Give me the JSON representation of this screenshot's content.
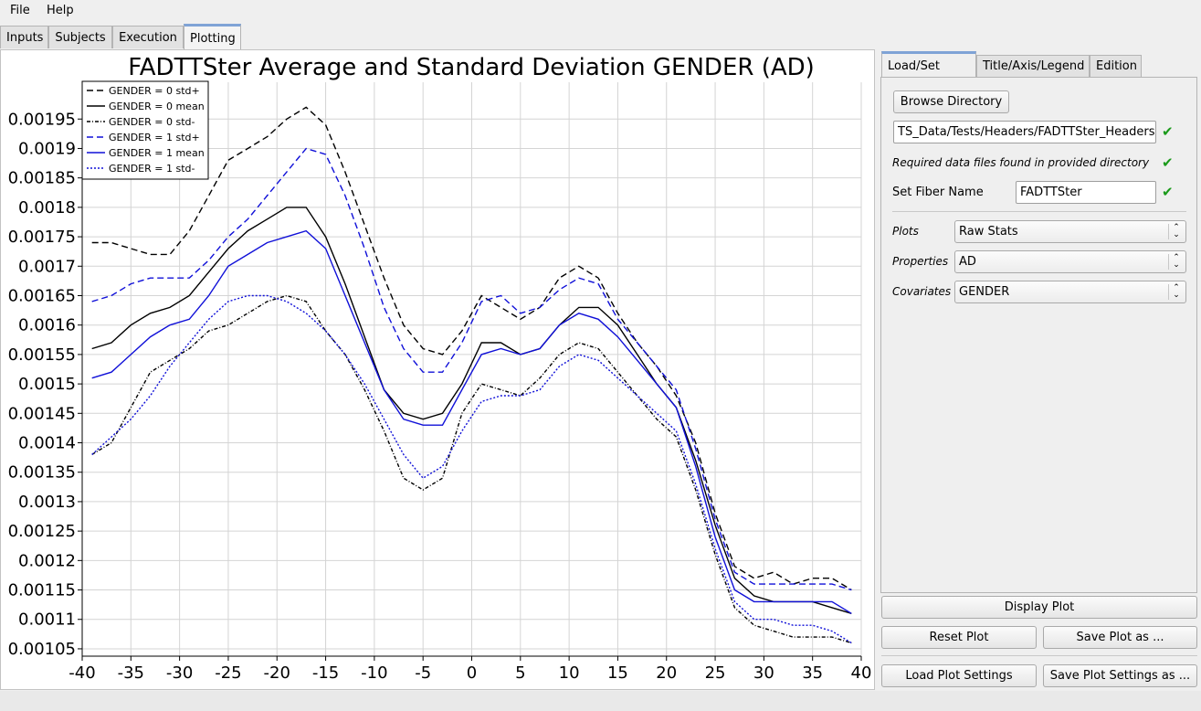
{
  "menu": {
    "file": "File",
    "help": "Help"
  },
  "tabs": [
    "Inputs",
    "Subjects",
    "Execution",
    "Plotting"
  ],
  "right_tabs": [
    "Load/Set Data",
    "Title/Axis/Legend",
    "Edition"
  ],
  "panel": {
    "browse_button": "Browse Directory",
    "directory_value": "TS_Data/Tests/Headers/FADTTSter_Headers",
    "status_text": "Required data files found in provided directory",
    "fiber_label": "Set Fiber Name",
    "fiber_value": "FADTTSter",
    "plots_label": "Plots",
    "plots_value": "Raw Stats",
    "properties_label": "Properties",
    "properties_value": "AD",
    "covariates_label": "Covariates",
    "covariates_value": "GENDER"
  },
  "buttons": {
    "display": "Display Plot",
    "reset": "Reset Plot",
    "save_plot": "Save Plot as ...",
    "load_settings": "Load Plot Settings",
    "save_settings": "Save Plot Settings as ..."
  },
  "colors": {
    "black": "#000000",
    "blue": "#1010d8",
    "check": "#1a9a1a",
    "accent": "#7fa3d6"
  },
  "chart_data": {
    "type": "line",
    "title": "FADTTSter Average and Standard Deviation GENDER (AD)",
    "xlabel": "",
    "ylabel": "",
    "xlim": [
      -40,
      40
    ],
    "ylim": [
      0.0010375,
      0.0020125
    ],
    "xticks": [
      -40,
      -35,
      -30,
      -25,
      -20,
      -15,
      -10,
      -5,
      0,
      5,
      10,
      15,
      20,
      25,
      30,
      35,
      40
    ],
    "xtick_labels": [
      "-40",
      "-35",
      "-30",
      "-25",
      "-20",
      "-15",
      "-10",
      "-5",
      "0",
      "5",
      "10",
      "15",
      "20",
      "25",
      "30",
      "35",
      "40"
    ],
    "yticks": [
      0.00105,
      0.0011,
      0.00115,
      0.0012,
      0.00125,
      0.0013,
      0.00135,
      0.0014,
      0.00145,
      0.0015,
      0.00155,
      0.0016,
      0.00165,
      0.0017,
      0.00175,
      0.0018,
      0.00185,
      0.0019,
      0.00195
    ],
    "ytick_labels": [
      "0.00105",
      "0.0011",
      "0.00115",
      "0.0012",
      "0.00125",
      "0.0013",
      "0.00135",
      "0.0014",
      "0.00145",
      "0.0015",
      "0.00155",
      "0.0016",
      "0.00165",
      "0.0017",
      "0.00175",
      "0.0018",
      "0.00185",
      "0.0019",
      "0.00195"
    ],
    "grid": true,
    "legend_position": "top-left",
    "x": [
      -39,
      -37,
      -35,
      -33,
      -31,
      -29,
      -27,
      -25,
      -23,
      -21,
      -19,
      -17,
      -15,
      -13,
      -11,
      -9,
      -7,
      -5,
      -3,
      -1,
      1,
      3,
      5,
      7,
      9,
      11,
      13,
      15,
      17,
      19,
      21,
      23,
      25,
      27,
      29,
      31,
      33,
      35,
      37,
      39
    ],
    "series": [
      {
        "name": "GENDER = 0 std+",
        "color": "#000000",
        "dash": "dashed",
        "values": [
          0.00174,
          0.00174,
          0.00173,
          0.00172,
          0.00172,
          0.00176,
          0.00182,
          0.00188,
          0.0019,
          0.00192,
          0.00195,
          0.00197,
          0.00194,
          0.00186,
          0.00177,
          0.00168,
          0.0016,
          0.00156,
          0.00155,
          0.00159,
          0.00165,
          0.00163,
          0.00161,
          0.00163,
          0.00168,
          0.0017,
          0.00168,
          0.00162,
          0.00157,
          0.00153,
          0.00148,
          0.0014,
          0.00128,
          0.00119,
          0.00117,
          0.00118,
          0.00116,
          0.00117,
          0.00117,
          0.00115
        ]
      },
      {
        "name": "GENDER = 0 mean",
        "color": "#000000",
        "dash": "solid",
        "values": [
          0.00156,
          0.00157,
          0.0016,
          0.00162,
          0.00163,
          0.00165,
          0.00169,
          0.00173,
          0.00176,
          0.00178,
          0.0018,
          0.0018,
          0.00175,
          0.00167,
          0.00158,
          0.00149,
          0.00145,
          0.00144,
          0.00145,
          0.0015,
          0.00157,
          0.00157,
          0.00155,
          0.00156,
          0.0016,
          0.00163,
          0.00163,
          0.0016,
          0.00155,
          0.0015,
          0.00146,
          0.00137,
          0.00126,
          0.00117,
          0.00114,
          0.00113,
          0.00113,
          0.00113,
          0.00112,
          0.00111
        ]
      },
      {
        "name": "GENDER = 0 std-",
        "color": "#000000",
        "dash": "dashdot",
        "values": [
          0.00138,
          0.0014,
          0.00146,
          0.00152,
          0.00154,
          0.00156,
          0.00159,
          0.0016,
          0.00162,
          0.00164,
          0.00165,
          0.00164,
          0.00159,
          0.00155,
          0.00149,
          0.00142,
          0.00134,
          0.00132,
          0.00134,
          0.00145,
          0.0015,
          0.00149,
          0.00148,
          0.00151,
          0.00155,
          0.00157,
          0.00156,
          0.00152,
          0.00148,
          0.00144,
          0.00141,
          0.00132,
          0.00121,
          0.00112,
          0.00109,
          0.00108,
          0.00107,
          0.00107,
          0.00107,
          0.00106
        ]
      },
      {
        "name": "GENDER = 1 std+",
        "color": "#1010d8",
        "dash": "dashed",
        "values": [
          0.00164,
          0.00165,
          0.00167,
          0.00168,
          0.00168,
          0.00168,
          0.00171,
          0.00175,
          0.00178,
          0.00182,
          0.00186,
          0.0019,
          0.00189,
          0.00182,
          0.00173,
          0.00163,
          0.00156,
          0.00152,
          0.00152,
          0.00157,
          0.00164,
          0.00165,
          0.00162,
          0.00163,
          0.00166,
          0.00168,
          0.00167,
          0.00161,
          0.00157,
          0.00153,
          0.00149,
          0.00139,
          0.00127,
          0.00118,
          0.00116,
          0.00116,
          0.00116,
          0.00116,
          0.00116,
          0.00115
        ]
      },
      {
        "name": "GENDER = 1 mean",
        "color": "#1010d8",
        "dash": "solid",
        "values": [
          0.00151,
          0.00152,
          0.00155,
          0.00158,
          0.0016,
          0.00161,
          0.00165,
          0.0017,
          0.00172,
          0.00174,
          0.00175,
          0.00176,
          0.00173,
          0.00165,
          0.00157,
          0.00149,
          0.00144,
          0.00143,
          0.00143,
          0.00149,
          0.00155,
          0.00156,
          0.00155,
          0.00156,
          0.0016,
          0.00162,
          0.00161,
          0.00158,
          0.00154,
          0.0015,
          0.00146,
          0.00136,
          0.00124,
          0.00115,
          0.00113,
          0.00113,
          0.00113,
          0.00113,
          0.00113,
          0.00111
        ]
      },
      {
        "name": "GENDER = 1 std-",
        "color": "#1010d8",
        "dash": "dotted",
        "values": [
          0.00138,
          0.00141,
          0.00144,
          0.00148,
          0.00153,
          0.00157,
          0.00161,
          0.00164,
          0.00165,
          0.00165,
          0.00164,
          0.00162,
          0.00159,
          0.00155,
          0.0015,
          0.00144,
          0.00138,
          0.00134,
          0.00136,
          0.00142,
          0.00147,
          0.00148,
          0.00148,
          0.00149,
          0.00153,
          0.00155,
          0.00154,
          0.00151,
          0.00148,
          0.00145,
          0.00142,
          0.00133,
          0.00122,
          0.00113,
          0.0011,
          0.0011,
          0.00109,
          0.00109,
          0.00108,
          0.00106
        ]
      }
    ],
    "legend_labels": [
      "GENDER = 0 std+",
      "GENDER = 0 mean",
      "GENDER = 0 std-",
      "GENDER = 1 std+",
      "GENDER = 1 mean",
      "GENDER = 1 std-"
    ]
  }
}
